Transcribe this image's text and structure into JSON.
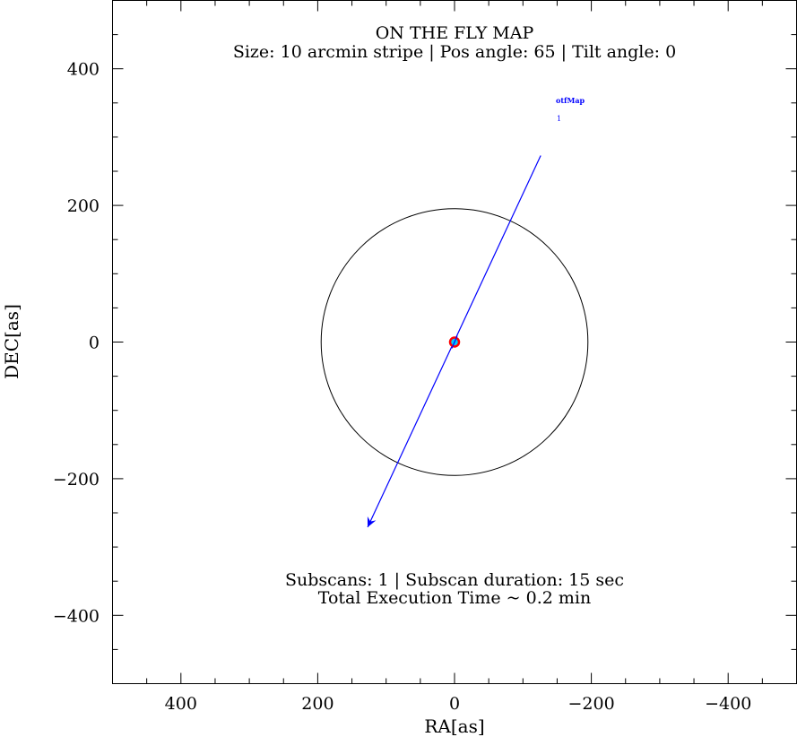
{
  "chart_data": {
    "type": "scatter",
    "title": "ON THE FLY MAP",
    "subtitle": "Size: 10 arcmin stripe | Pos angle: 65 | Tilt angle: 0",
    "xlabel": "RA[as]",
    "ylabel": "DEC[as]",
    "xlim": [
      500,
      -500
    ],
    "ylim": [
      -500,
      500
    ],
    "xticks": [
      400,
      200,
      0,
      -200,
      -400
    ],
    "xtick_labels": [
      "400",
      "200",
      "0",
      "−200",
      "−400"
    ],
    "yticks": [
      400,
      200,
      0,
      -200,
      -400
    ],
    "ytick_labels": [
      "400",
      "200",
      "0",
      "−200",
      "−400"
    ],
    "minor_tick_step": 50,
    "circle": {
      "center": [
        0,
        0
      ],
      "radius": 195,
      "color": "#000000"
    },
    "scan_line": {
      "start": [
        -126,
        273
      ],
      "end": [
        127,
        -271
      ],
      "color": "#0000ff"
    },
    "center_marker": {
      "position": [
        0,
        0
      ],
      "fill": "#00ccff",
      "edge": "#ff0000"
    },
    "legend": {
      "label": "otfMap",
      "index": "1",
      "color": "#0000ff",
      "position": "top-right"
    },
    "annotations": [
      "Subscans: 1 | Subscan duration: 15 sec",
      "Total Execution Time ~ 0.2 min"
    ]
  }
}
